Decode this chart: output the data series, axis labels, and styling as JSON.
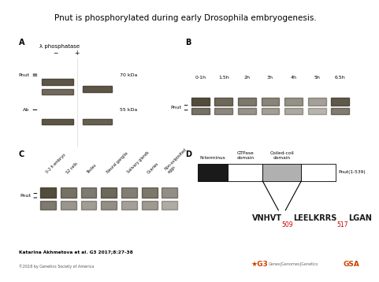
{
  "title": "Pnut is phosphorylated during early Drosophila embryogenesis.",
  "title_fontsize": 7.5,
  "background_color": "#ffffff",
  "panel_A": {
    "label": "A",
    "phosphatase_label": "λ phosphatase",
    "minus": "−",
    "plus": "+",
    "pnut_label": "Pnut",
    "ab_label": "Ab",
    "kda70": "70 kDa",
    "kda55": "55 kDa",
    "gel_bg": "#d8d0c0",
    "band_color": "#403828"
  },
  "panel_B": {
    "label": "B",
    "timepoints": [
      "0-1h",
      "1.5h",
      "2h",
      "3h",
      "4h",
      "5h",
      "6.5h"
    ],
    "pnut_label": "Pnut",
    "gel_bg": "#d8d0c0",
    "band_color": "#403828"
  },
  "panel_C": {
    "label": "C",
    "tissues": [
      "0-2 h embryo",
      "S2 cells",
      "Testes",
      "Neural ganglia",
      "Salivary glands",
      "Ovaries",
      "Non-oviposited\neggs"
    ],
    "pnut_label": "Pnut",
    "gel_bg": "#d8d0c0",
    "band_color": "#403828"
  },
  "panel_D": {
    "label": "D",
    "domain_names": [
      "N-terminus",
      "GTPase\ndomain",
      "Coiled-coil\ndomain",
      ""
    ],
    "domain_colors": [
      "#1a1a1a",
      "#ffffff",
      "#b0b0b0",
      "#ffffff"
    ],
    "domain_starts": [
      0.0,
      0.22,
      0.47,
      0.75
    ],
    "domain_ends": [
      0.22,
      0.47,
      0.75,
      1.0
    ],
    "pnut_label": "Pnut(1-539)",
    "seq_parts": [
      {
        "text": "VNHVT",
        "sub": false,
        "color": "#1a1a1a"
      },
      {
        "text": "509",
        "sub": true,
        "color": "#cc0000"
      },
      {
        "text": "LEELKRRS",
        "sub": false,
        "color": "#1a1a1a"
      },
      {
        "text": "517",
        "sub": true,
        "color": "#cc0000"
      },
      {
        "text": "LGAN",
        "sub": false,
        "color": "#1a1a1a"
      }
    ]
  },
  "footer_citation": "Katarina Akhmetova et al. G3 2017;8:27-38",
  "footer_copyright": "©2018 by Genetics Society of America",
  "g3_color": "#cc4400",
  "text_color": "#333333"
}
